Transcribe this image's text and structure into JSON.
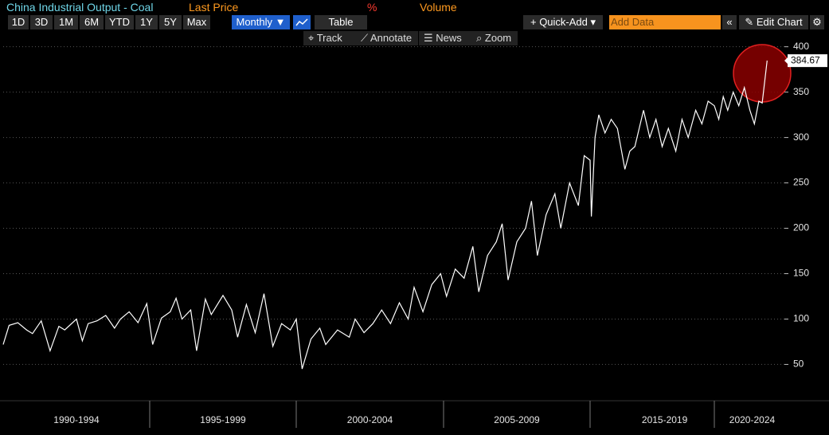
{
  "header": {
    "title": "China Industrial Output - Coal",
    "fields": [
      "Last Price",
      "%",
      "Volume"
    ]
  },
  "toolbar": {
    "ranges": [
      "1D",
      "3D",
      "1M",
      "6M",
      "YTD",
      "1Y",
      "5Y",
      "Max"
    ],
    "frequency": "Monthly",
    "table": "Table",
    "quick_add": "Quick-Add",
    "add_data": "Add Data",
    "edit_chart": "Edit Chart"
  },
  "tools": [
    "Track",
    "Annotate",
    "News",
    "Zoom"
  ],
  "chart_data": {
    "type": "line",
    "color": "#ffffff",
    "grid": true,
    "x": [
      1990.0,
      1990.2,
      1990.5,
      1990.8,
      1991.0,
      1991.3,
      1991.6,
      1991.9,
      1992.1,
      1992.5,
      1992.7,
      1992.9,
      1993.2,
      1993.5,
      1993.8,
      1994.0,
      1994.3,
      1994.6,
      1994.9,
      1995.1,
      1995.4,
      1995.7,
      1995.9,
      1996.1,
      1996.4,
      1996.6,
      1996.9,
      1997.1,
      1997.5,
      1997.8,
      1998.0,
      1998.3,
      1998.6,
      1998.9,
      1999.2,
      1999.5,
      1999.8,
      2000.0,
      2000.2,
      2000.5,
      2000.8,
      2001.0,
      2001.4,
      2001.8,
      2002.0,
      2002.3,
      2002.6,
      2002.9,
      2003.2,
      2003.5,
      2003.8,
      2004.0,
      2004.3,
      2004.6,
      2004.9,
      2005.1,
      2005.4,
      2005.7,
      2006.0,
      2006.2,
      2006.5,
      2006.8,
      2007.0,
      2007.2,
      2007.5,
      2007.8,
      2008.0,
      2008.2,
      2008.5,
      2008.8,
      2009.0,
      2009.3,
      2009.6,
      2009.8,
      2010.0,
      2010.1,
      2010.4,
      2010.7,
      2011.2,
      2011.7,
      2012.2,
      2012.8,
      2013.2,
      2013.6,
      2014.3,
      2014.8,
      2015.3,
      2015.8,
      2016.3,
      2016.9,
      2017.4,
      2017.9,
      2018.5,
      2019.0,
      2019.5,
      2020.0,
      2020.4,
      2020.8,
      2021.2,
      2021.7,
      2022.2,
      2022.7,
      2023.2,
      2023.6,
      2024.0,
      2024.3,
      2024.75
    ],
    "values": [
      72,
      93,
      96,
      88,
      84,
      98,
      65,
      92,
      88,
      100,
      76,
      95,
      98,
      104,
      90,
      100,
      108,
      96,
      117,
      72,
      101,
      108,
      123,
      100,
      110,
      65,
      122,
      105,
      126,
      110,
      80,
      116,
      85,
      128,
      70,
      95,
      88,
      100,
      45,
      78,
      90,
      72,
      88,
      80,
      100,
      85,
      95,
      110,
      95,
      118,
      100,
      135,
      108,
      138,
      150,
      125,
      155,
      145,
      180,
      130,
      170,
      185,
      205,
      143,
      185,
      200,
      230,
      170,
      215,
      238,
      200,
      250,
      225,
      280,
      275,
      213,
      300,
      325,
      305,
      320,
      310,
      265,
      285,
      290,
      330,
      300,
      320,
      290,
      310,
      285,
      320,
      300,
      330,
      315,
      340,
      335,
      320,
      345,
      330,
      350,
      335,
      355,
      330,
      315,
      340,
      338,
      384.67
    ],
    "xlim": [
      1990,
      2026.3
    ],
    "x_dividers": [
      1995,
      2000,
      2005,
      2010,
      2020
    ],
    "xticks": [
      {
        "value": 1992.5,
        "label": "1990-1994"
      },
      {
        "value": 1997.5,
        "label": "1995-1999"
      },
      {
        "value": 2002.5,
        "label": "2000-2004"
      },
      {
        "value": 2007.5,
        "label": "2005-2009"
      },
      {
        "value": 2016,
        "label": "2015-2019"
      },
      {
        "value": 2023.4,
        "label": "2020-2024"
      }
    ],
    "ylim": [
      10,
      412
    ],
    "yticks": [
      50,
      100,
      150,
      200,
      250,
      300,
      350,
      400
    ]
  }
}
